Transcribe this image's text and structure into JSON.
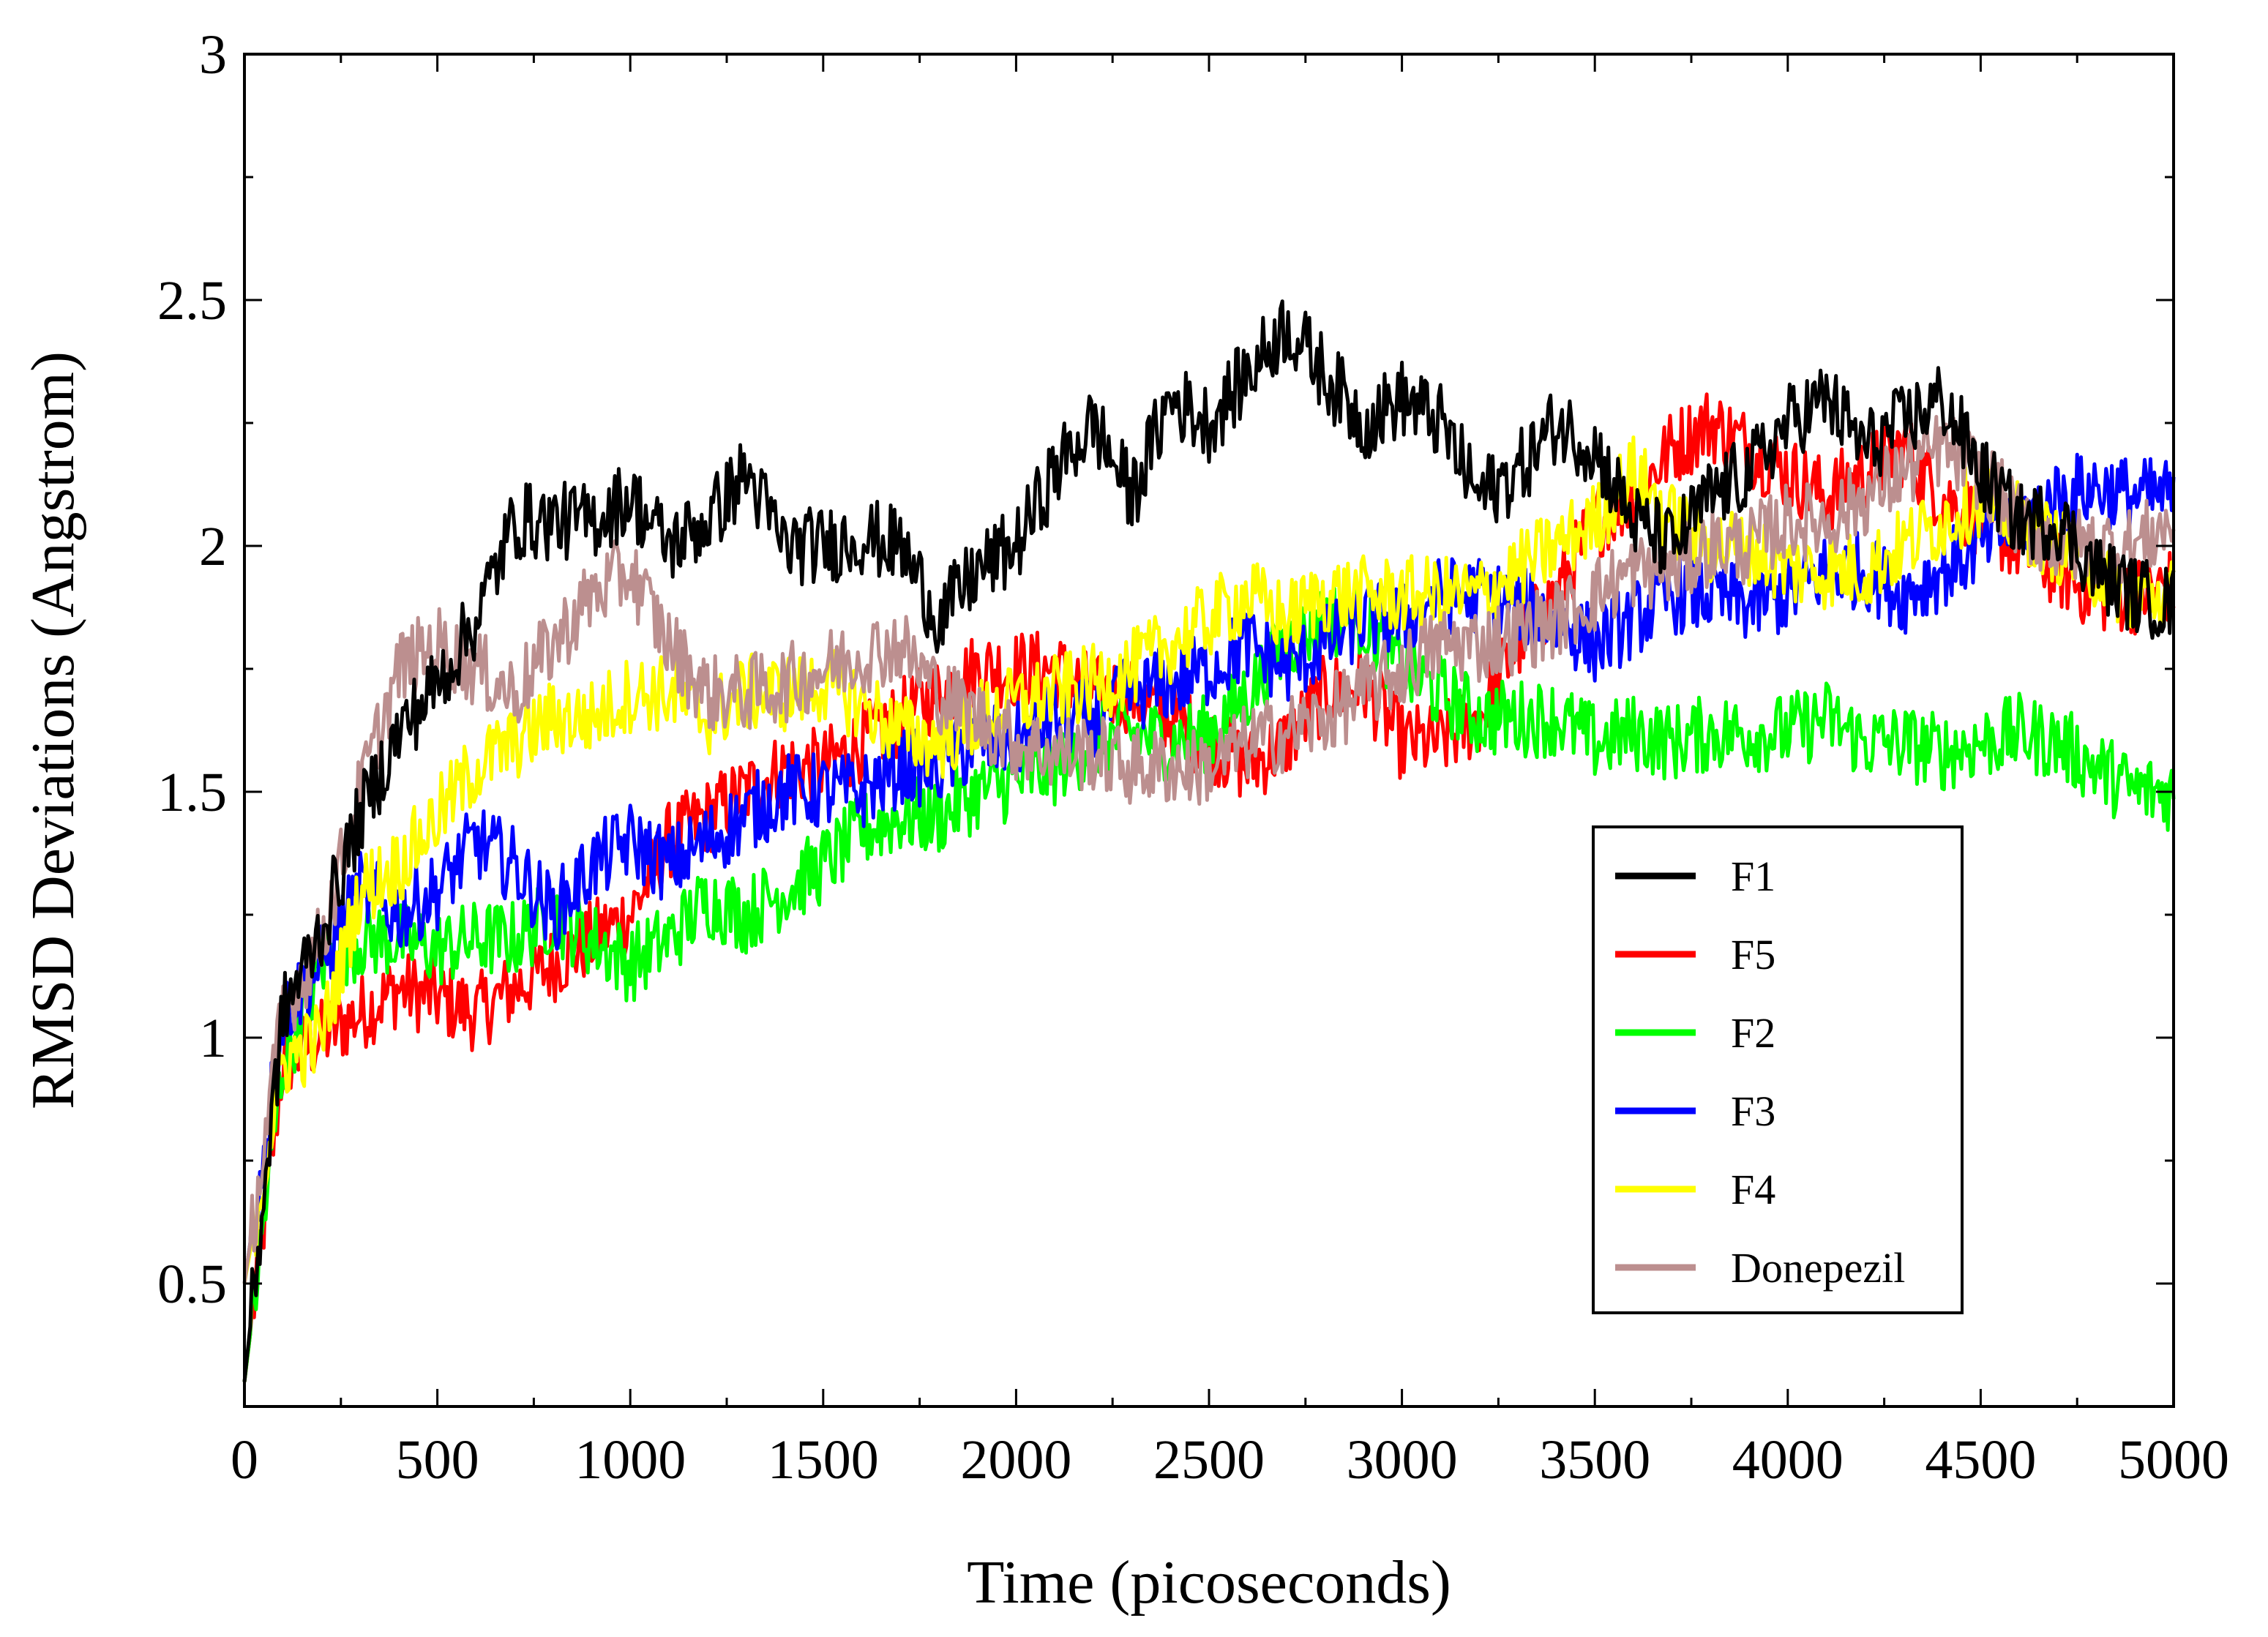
{
  "chart_data": {
    "type": "line",
    "title": "",
    "xlabel": "Time (picoseconds)",
    "ylabel": "RMSD Deviations (Angstrom)",
    "xlim": [
      0,
      5000
    ],
    "ylim": [
      0.25,
      3
    ],
    "x_ticks": [
      0,
      500,
      1000,
      1500,
      2000,
      2500,
      3000,
      3500,
      4000,
      4500,
      5000
    ],
    "x_tick_labels": [
      "0",
      "500",
      "1000",
      "1500",
      "2000",
      "2500",
      "3000",
      "3500",
      "4000",
      "4500",
      "5000"
    ],
    "y_ticks": [
      0.5,
      1,
      1.5,
      2,
      2.5,
      3
    ],
    "y_tick_labels": [
      "0.5",
      "1",
      "1.5",
      "2",
      "2.5",
      "3"
    ],
    "legend_position": "lower-right",
    "x": [
      0,
      100,
      200,
      300,
      400,
      500,
      600,
      700,
      800,
      900,
      1000,
      1100,
      1200,
      1300,
      1400,
      1500,
      1600,
      1700,
      1800,
      1900,
      2000,
      2100,
      2200,
      2300,
      2400,
      2500,
      2600,
      2700,
      2800,
      2900,
      3000,
      3100,
      3200,
      3300,
      3400,
      3500,
      3600,
      3700,
      3800,
      3900,
      4000,
      4100,
      4200,
      4300,
      4400,
      4500,
      4600,
      4700,
      4800,
      4900,
      5000
    ],
    "series": [
      {
        "name": "F1",
        "color": "#000000",
        "values": [
          0.3,
          1.05,
          1.22,
          1.45,
          1.62,
          1.72,
          1.85,
          2.05,
          2.05,
          2.05,
          2.1,
          2.0,
          2.05,
          2.15,
          2.0,
          2.0,
          2.02,
          2.0,
          1.85,
          1.95,
          2.0,
          2.15,
          2.25,
          2.1,
          2.3,
          2.25,
          2.35,
          2.45,
          2.35,
          2.25,
          2.3,
          2.25,
          2.1,
          2.15,
          2.25,
          2.2,
          2.05,
          2.0,
          2.1,
          2.15,
          2.25,
          2.3,
          2.2,
          2.25,
          2.3,
          2.15,
          2.05,
          2.05,
          1.95,
          1.9,
          1.88
        ]
      },
      {
        "name": "F5",
        "color": "#ff0000",
        "values": [
          0.3,
          0.95,
          1.0,
          1.05,
          1.1,
          1.08,
          1.05,
          1.1,
          1.15,
          1.2,
          1.25,
          1.4,
          1.45,
          1.5,
          1.55,
          1.55,
          1.6,
          1.65,
          1.7,
          1.75,
          1.75,
          1.75,
          1.7,
          1.7,
          1.65,
          1.6,
          1.55,
          1.6,
          1.7,
          1.72,
          1.6,
          1.6,
          1.65,
          1.8,
          1.9,
          2.05,
          2.1,
          2.2,
          2.25,
          2.2,
          2.15,
          2.1,
          2.15,
          2.2,
          2.1,
          2.05,
          2.0,
          1.95,
          1.9,
          1.9,
          1.92
        ]
      },
      {
        "name": "F2",
        "color": "#00ff00",
        "values": [
          0.3,
          0.95,
          1.15,
          1.2,
          1.2,
          1.18,
          1.2,
          1.2,
          1.25,
          1.2,
          1.15,
          1.2,
          1.28,
          1.25,
          1.3,
          1.35,
          1.42,
          1.45,
          1.45,
          1.5,
          1.52,
          1.55,
          1.6,
          1.62,
          1.6,
          1.62,
          1.7,
          1.8,
          1.85,
          1.85,
          1.75,
          1.7,
          1.65,
          1.65,
          1.65,
          1.6,
          1.62,
          1.6,
          1.62,
          1.62,
          1.62,
          1.65,
          1.6,
          1.6,
          1.58,
          1.6,
          1.62,
          1.6,
          1.55,
          1.5,
          1.5
        ]
      },
      {
        "name": "F3",
        "color": "#0000ff",
        "values": [
          0.5,
          1.05,
          1.15,
          1.3,
          1.25,
          1.3,
          1.4,
          1.35,
          1.25,
          1.35,
          1.4,
          1.35,
          1.4,
          1.45,
          1.5,
          1.5,
          1.5,
          1.55,
          1.55,
          1.6,
          1.6,
          1.65,
          1.65,
          1.7,
          1.72,
          1.75,
          1.8,
          1.75,
          1.8,
          1.85,
          1.85,
          1.9,
          1.9,
          1.88,
          1.85,
          1.8,
          1.85,
          1.9,
          1.9,
          1.88,
          1.9,
          1.95,
          1.95,
          1.9,
          1.95,
          2.0,
          2.05,
          2.1,
          2.12,
          2.1,
          2.1
        ]
      },
      {
        "name": "F4",
        "color": "#ffff00",
        "values": [
          0.5,
          0.95,
          1.0,
          1.3,
          1.35,
          1.45,
          1.55,
          1.6,
          1.65,
          1.65,
          1.7,
          1.7,
          1.65,
          1.7,
          1.7,
          1.72,
          1.68,
          1.62,
          1.6,
          1.65,
          1.68,
          1.7,
          1.72,
          1.75,
          1.8,
          1.85,
          1.9,
          1.85,
          1.9,
          1.9,
          1.9,
          1.9,
          1.9,
          1.95,
          2.0,
          2.05,
          2.15,
          2.05,
          2.0,
          2.0,
          1.95,
          1.95,
          1.95,
          2.0,
          2.05,
          2.1,
          2.05,
          2.0,
          1.95,
          1.9,
          1.9
        ]
      },
      {
        "name": "Donepezil",
        "color": "#bc8f8f",
        "values": [
          0.5,
          1.05,
          1.2,
          1.5,
          1.75,
          1.8,
          1.75,
          1.7,
          1.8,
          1.9,
          1.95,
          1.8,
          1.7,
          1.7,
          1.72,
          1.75,
          1.78,
          1.8,
          1.7,
          1.65,
          1.6,
          1.58,
          1.58,
          1.55,
          1.55,
          1.55,
          1.6,
          1.62,
          1.65,
          1.7,
          1.75,
          1.8,
          1.8,
          1.82,
          1.85,
          1.9,
          1.95,
          1.95,
          2.0,
          2.0,
          2.05,
          2.05,
          2.1,
          2.15,
          2.2,
          2.15,
          2.05,
          2.0,
          2.0,
          2.0,
          2.05
        ]
      }
    ]
  }
}
